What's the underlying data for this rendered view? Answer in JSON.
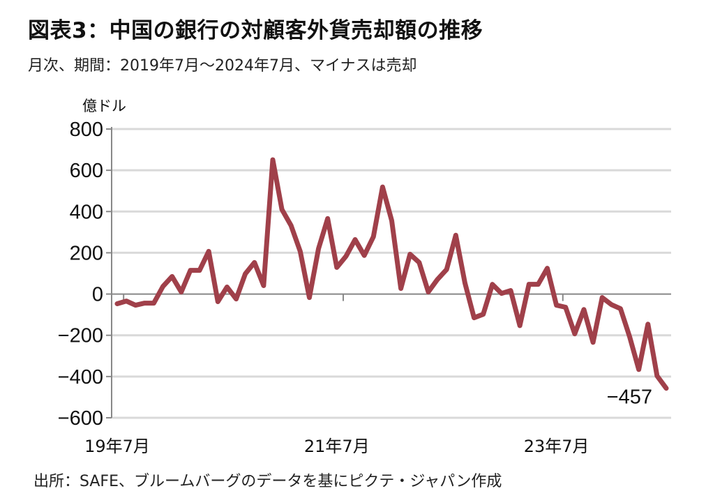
{
  "title": "図表3：中国の銀行の対顧客外貨売却額の推移",
  "subtitle": "月次、期間：2019年7月～2024年7月、マイナスは売却",
  "source": "出所：SAFE、ブルームバーグのデータを基にピクテ・ジャパン作成",
  "chart_data": {
    "type": "line",
    "title": "図表3：中国の銀行の対顧客外貨売却額の推移",
    "ylabel": "億ドル",
    "xlabel": "",
    "ylim": [
      -600,
      800
    ],
    "yticks": [
      800,
      600,
      400,
      200,
      0,
      -200,
      -400,
      -600
    ],
    "ytick_labels": [
      "800",
      "600",
      "400",
      "200",
      "0",
      "-200",
      "-400",
      "-600"
    ],
    "xtick_labels": [
      {
        "index": 0,
        "label": "19年7月"
      },
      {
        "index": 24,
        "label": "21年7月"
      },
      {
        "index": 48,
        "label": "23年7月"
      }
    ],
    "grid": true,
    "line_color": "#a0404a",
    "annotation": {
      "index": 60,
      "label": "-457"
    },
    "series": [
      {
        "name": "対顧客外貨売却額",
        "values": [
          -47,
          -34,
          -54,
          -44,
          -44,
          37,
          85,
          10,
          115,
          115,
          207,
          -37,
          34,
          -24,
          98,
          153,
          41,
          651,
          410,
          332,
          207,
          -17,
          220,
          366,
          129,
          183,
          264,
          187,
          278,
          519,
          356,
          27,
          193,
          153,
          10,
          71,
          119,
          285,
          54,
          -115,
          -98,
          47,
          3,
          17,
          -153,
          47,
          47,
          125,
          -54,
          -64,
          -193,
          -75,
          -234,
          -17,
          -51,
          -71,
          -207,
          -366,
          -146,
          -397,
          -457
        ]
      }
    ]
  }
}
